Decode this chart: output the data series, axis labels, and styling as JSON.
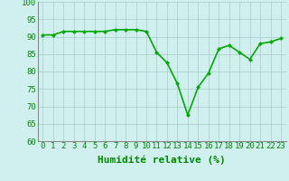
{
  "x": [
    0,
    1,
    2,
    3,
    4,
    5,
    6,
    7,
    8,
    9,
    10,
    11,
    12,
    13,
    14,
    15,
    16,
    17,
    18,
    19,
    20,
    21,
    22,
    23
  ],
  "y": [
    90.5,
    90.5,
    91.5,
    91.5,
    91.5,
    91.5,
    91.5,
    92,
    92,
    92,
    91.5,
    85.5,
    82.5,
    76.5,
    67.5,
    75.5,
    79.5,
    86.5,
    87.5,
    85.5,
    83.5,
    88,
    88.5,
    89.5
  ],
  "line_color": "#00aa00",
  "marker_color": "#00aa00",
  "bg_color": "#d0f0f0",
  "grid_color": "#aacccc",
  "axis_color": "#008800",
  "xlabel": "Humidité relative (%)",
  "ylim": [
    60,
    100
  ],
  "xlim": [
    -0.5,
    23.5
  ],
  "yticks": [
    60,
    65,
    70,
    75,
    80,
    85,
    90,
    95,
    100
  ],
  "xticks": [
    0,
    1,
    2,
    3,
    4,
    5,
    6,
    7,
    8,
    9,
    10,
    11,
    12,
    13,
    14,
    15,
    16,
    17,
    18,
    19,
    20,
    21,
    22,
    23
  ],
  "xlabel_fontsize": 8,
  "tick_fontsize": 6.5,
  "line_width": 1.2,
  "marker_size": 2.5
}
